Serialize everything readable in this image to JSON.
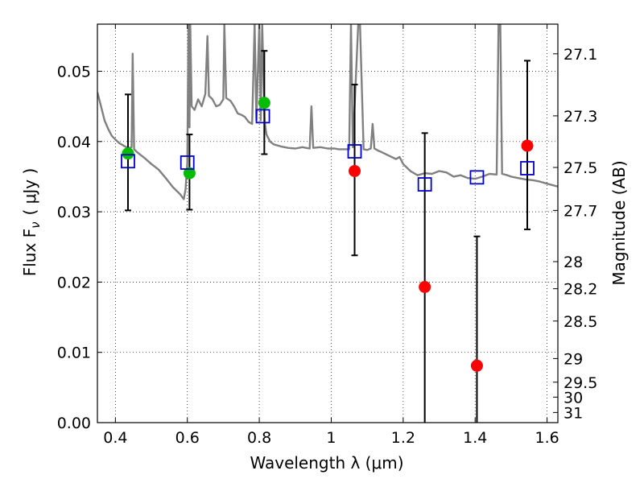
{
  "chart_data": {
    "type": "scatter",
    "x_axis": {
      "label": "Wavelength  λ (μm)",
      "range": [
        0.35,
        1.63
      ],
      "ticks": [
        0.4,
        0.6,
        0.8,
        1.0,
        1.2,
        1.4,
        1.6
      ],
      "tick_labels": [
        "0.4",
        "0.6",
        "0.8",
        "1",
        "1.2",
        "1.4",
        "1.6"
      ]
    },
    "y_axis": {
      "label": "Flux  F",
      "label_subscript": "ν",
      "label_unit": "( μJy )",
      "range": [
        0.0,
        0.0567
      ],
      "ticks": [
        0.0,
        0.01,
        0.02,
        0.03,
        0.04,
        0.05
      ],
      "tick_labels": [
        "0.00",
        "0.01",
        "0.02",
        "0.03",
        "0.04",
        "0.05"
      ]
    },
    "y2_axis": {
      "label": "Magnitude (AB)",
      "ticks": [
        27.1,
        27.3,
        27.5,
        27.7,
        28.0,
        28.2,
        28.5,
        29.0,
        29.5,
        30.0,
        31.0
      ],
      "tick_labels": [
        "27.1",
        "27.3",
        "27.5",
        "27.7",
        "28",
        "28.2",
        "28.5",
        "29",
        "29.5",
        "30",
        "31"
      ]
    },
    "grid": true,
    "series": [
      {
        "marker": "green-circle",
        "color": "#00bb00",
        "points": [
          {
            "x": 0.435,
            "y": 0.0383
          },
          {
            "x": 0.606,
            "y": 0.0355
          },
          {
            "x": 0.814,
            "y": 0.0455
          }
        ]
      },
      {
        "marker": "red-circle",
        "color": "#ff0000",
        "points": [
          {
            "x": 1.065,
            "y": 0.0358
          },
          {
            "x": 1.26,
            "y": 0.0193
          },
          {
            "x": 1.405,
            "y": 0.0081
          },
          {
            "x": 1.545,
            "y": 0.0394
          }
        ]
      },
      {
        "marker": "blue-open-square",
        "color": "#0000cc",
        "points": [
          {
            "x": 0.435,
            "y": 0.0372
          },
          {
            "x": 0.6,
            "y": 0.037
          },
          {
            "x": 0.81,
            "y": 0.0436
          },
          {
            "x": 1.065,
            "y": 0.0386
          },
          {
            "x": 1.26,
            "y": 0.0339
          },
          {
            "x": 1.405,
            "y": 0.0349
          },
          {
            "x": 1.545,
            "y": 0.0362
          }
        ]
      },
      {
        "marker": "errorbar",
        "color": "#000000",
        "bars": [
          {
            "x": 0.435,
            "low": 0.0302,
            "high": 0.0467
          },
          {
            "x": 0.606,
            "low": 0.0303,
            "high": 0.041
          },
          {
            "x": 0.814,
            "low": 0.0382,
            "high": 0.0529
          },
          {
            "x": 1.065,
            "low": 0.0238,
            "high": 0.0481
          },
          {
            "x": 1.26,
            "low": 0.0,
            "high": 0.0412
          },
          {
            "x": 1.405,
            "low": 0.0,
            "high": 0.0265
          },
          {
            "x": 1.545,
            "low": 0.0275,
            "high": 0.0515
          }
        ]
      },
      {
        "marker": "line",
        "color": "#808080",
        "points": [
          [
            0.35,
            0.047
          ],
          [
            0.36,
            0.045
          ],
          [
            0.37,
            0.043
          ],
          [
            0.38,
            0.0418
          ],
          [
            0.39,
            0.0408
          ],
          [
            0.4,
            0.0403
          ],
          [
            0.41,
            0.0398
          ],
          [
            0.42,
            0.0395
          ],
          [
            0.43,
            0.0392
          ],
          [
            0.44,
            0.0391
          ],
          [
            0.445,
            0.0392
          ],
          [
            0.448,
            0.0525
          ],
          [
            0.452,
            0.0389
          ],
          [
            0.46,
            0.0385
          ],
          [
            0.48,
            0.0377
          ],
          [
            0.5,
            0.0368
          ],
          [
            0.52,
            0.036
          ],
          [
            0.54,
            0.0348
          ],
          [
            0.56,
            0.0335
          ],
          [
            0.58,
            0.0325
          ],
          [
            0.59,
            0.0318
          ],
          [
            0.595,
            0.0332
          ],
          [
            0.6,
            0.037
          ],
          [
            0.603,
            0.0567
          ],
          [
            0.606,
            0.042
          ],
          [
            0.608,
            0.0567
          ],
          [
            0.612,
            0.045
          ],
          [
            0.62,
            0.0445
          ],
          [
            0.63,
            0.046
          ],
          [
            0.64,
            0.045
          ],
          [
            0.65,
            0.0468
          ],
          [
            0.656,
            0.055
          ],
          [
            0.66,
            0.0465
          ],
          [
            0.67,
            0.046
          ],
          [
            0.68,
            0.045
          ],
          [
            0.69,
            0.0452
          ],
          [
            0.7,
            0.046
          ],
          [
            0.703,
            0.0567
          ],
          [
            0.708,
            0.0462
          ],
          [
            0.72,
            0.0458
          ],
          [
            0.73,
            0.045
          ],
          [
            0.74,
            0.044
          ],
          [
            0.75,
            0.0438
          ],
          [
            0.76,
            0.0435
          ],
          [
            0.77,
            0.0428
          ],
          [
            0.78,
            0.0425
          ],
          [
            0.787,
            0.0567
          ],
          [
            0.792,
            0.043
          ],
          [
            0.8,
            0.0567
          ],
          [
            0.804,
            0.043
          ],
          [
            0.808,
            0.0567
          ],
          [
            0.815,
            0.0428
          ],
          [
            0.82,
            0.041
          ],
          [
            0.83,
            0.04
          ],
          [
            0.84,
            0.0396
          ],
          [
            0.86,
            0.0393
          ],
          [
            0.88,
            0.0391
          ],
          [
            0.9,
            0.039
          ],
          [
            0.92,
            0.0392
          ],
          [
            0.94,
            0.039
          ],
          [
            0.945,
            0.045
          ],
          [
            0.95,
            0.0391
          ],
          [
            0.97,
            0.0392
          ],
          [
            0.99,
            0.039
          ],
          [
            1.01,
            0.039
          ],
          [
            1.02,
            0.0389
          ],
          [
            1.05,
            0.0389
          ],
          [
            1.055,
            0.0567
          ],
          [
            1.06,
            0.0392
          ],
          [
            1.075,
            0.0567
          ],
          [
            1.08,
            0.0567
          ],
          [
            1.09,
            0.0389
          ],
          [
            1.1,
            0.0388
          ],
          [
            1.11,
            0.039
          ],
          [
            1.115,
            0.0425
          ],
          [
            1.12,
            0.039
          ],
          [
            1.13,
            0.0387
          ],
          [
            1.14,
            0.0385
          ],
          [
            1.16,
            0.038
          ],
          [
            1.18,
            0.0375
          ],
          [
            1.19,
            0.0378
          ],
          [
            1.2,
            0.0368
          ],
          [
            1.22,
            0.0358
          ],
          [
            1.24,
            0.0352
          ],
          [
            1.26,
            0.0355
          ],
          [
            1.28,
            0.0354
          ],
          [
            1.3,
            0.0358
          ],
          [
            1.31,
            0.0357
          ],
          [
            1.32,
            0.0356
          ],
          [
            1.34,
            0.035
          ],
          [
            1.36,
            0.0352
          ],
          [
            1.38,
            0.0348
          ],
          [
            1.4,
            0.0347
          ],
          [
            1.42,
            0.035
          ],
          [
            1.44,
            0.0354
          ],
          [
            1.46,
            0.0353
          ],
          [
            1.465,
            0.0567
          ],
          [
            1.47,
            0.0567
          ],
          [
            1.475,
            0.0354
          ],
          [
            1.49,
            0.0352
          ],
          [
            1.5,
            0.035
          ],
          [
            1.52,
            0.0348
          ],
          [
            1.54,
            0.0346
          ],
          [
            1.56,
            0.0345
          ],
          [
            1.58,
            0.0343
          ],
          [
            1.6,
            0.034
          ],
          [
            1.63,
            0.0336
          ]
        ]
      }
    ]
  }
}
